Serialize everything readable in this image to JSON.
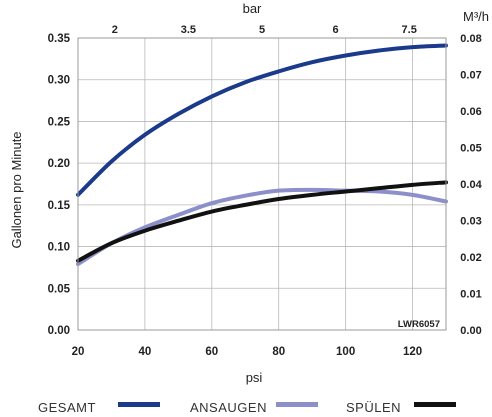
{
  "chart_data": {
    "type": "line",
    "x_label": "psi",
    "y_label": "Gallonen pro Minute",
    "x_top_label": "bar",
    "y_right_label": "M³/h",
    "model_code": "LWR6057",
    "x_ticks": [
      "20",
      "40",
      "60",
      "80",
      "100",
      "120"
    ],
    "y_ticks": [
      "0.00",
      "0.05",
      "0.10",
      "0.15",
      "0.20",
      "0.25",
      "0.30",
      "0.35"
    ],
    "x_top_ticks": [
      "2",
      "3.5",
      "5",
      "6",
      "7.5"
    ],
    "y_right_ticks": [
      "0.00",
      "0.01",
      "0.02",
      "0.03",
      "0.04",
      "0.05",
      "0.06",
      "0.07",
      "0.08"
    ],
    "xlim": [
      20,
      130
    ],
    "ylim": [
      0,
      0.35
    ],
    "grid": true,
    "legend_position": "bottom",
    "series": [
      {
        "name": "GESAMT",
        "color": "#1b3a8c",
        "x": [
          20,
          30,
          40,
          50,
          60,
          70,
          80,
          90,
          100,
          110,
          120,
          130
        ],
        "y": [
          0.162,
          0.202,
          0.234,
          0.259,
          0.28,
          0.297,
          0.31,
          0.321,
          0.329,
          0.335,
          0.339,
          0.341
        ]
      },
      {
        "name": "ANSAUGEN",
        "color": "#8c8fc9",
        "x": [
          20,
          30,
          40,
          50,
          60,
          70,
          80,
          90,
          100,
          110,
          120,
          130
        ],
        "y": [
          0.079,
          0.104,
          0.123,
          0.138,
          0.152,
          0.161,
          0.167,
          0.168,
          0.167,
          0.166,
          0.162,
          0.154
        ]
      },
      {
        "name": "SPÜLEN",
        "color": "#111111",
        "x": [
          20,
          30,
          40,
          50,
          60,
          70,
          80,
          90,
          100,
          110,
          120,
          130
        ],
        "y": [
          0.083,
          0.104,
          0.119,
          0.131,
          0.142,
          0.15,
          0.157,
          0.162,
          0.166,
          0.17,
          0.174,
          0.177
        ]
      }
    ]
  }
}
